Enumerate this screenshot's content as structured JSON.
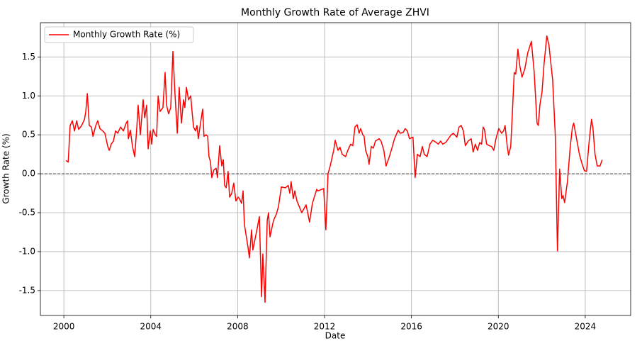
{
  "chart_data": {
    "type": "line",
    "title": "Monthly Growth Rate of Average ZHVI",
    "x_label": "Date",
    "y_label": "Growth Rate (%)",
    "xlim": [
      1998.92,
      2026.09
    ],
    "ylim": [
      -1.82,
      1.94
    ],
    "xticks": [
      2000,
      2004,
      2008,
      2012,
      2016,
      2020,
      2024
    ],
    "yticks": [
      -1.5,
      {
        "value": -1.0,
        "label": "-1.0"
      },
      -0.5,
      {
        "value": 0.0,
        "label": "0.0"
      },
      0.5,
      {
        "value": 1.0,
        "label": "1.0"
      },
      1.5
    ],
    "grid": true,
    "legend": "upper left",
    "hlines": [
      0
    ],
    "series": [
      {
        "name": "Monthly Growth Rate (%)",
        "color": "#ff0000",
        "x": [
          2000.1,
          2000.2,
          2000.29,
          2000.39,
          2000.49,
          2000.59,
          2000.68,
          2000.82,
          2000.95,
          2001.01,
          2001.08,
          2001.17,
          2001.27,
          2001.34,
          2001.47,
          2001.56,
          2001.66,
          2001.79,
          2001.89,
          2002.02,
          2002.09,
          2002.18,
          2002.28,
          2002.38,
          2002.48,
          2002.61,
          2002.74,
          2002.87,
          2002.93,
          2002.97,
          2003.06,
          2003.16,
          2003.26,
          2003.36,
          2003.42,
          2003.52,
          2003.65,
          2003.72,
          2003.81,
          2003.88,
          2003.98,
          2004.04,
          2004.11,
          2004.21,
          2004.27,
          2004.34,
          2004.43,
          2004.56,
          2004.66,
          2004.73,
          2004.82,
          2004.92,
          2005.02,
          2005.12,
          2005.22,
          2005.31,
          2005.41,
          2005.51,
          2005.57,
          2005.64,
          2005.74,
          2005.84,
          2005.9,
          2005.97,
          2006.06,
          2006.13,
          2006.19,
          2006.29,
          2006.39,
          2006.45,
          2006.55,
          2006.62,
          2006.68,
          2006.75,
          2006.81,
          2006.91,
          2007.01,
          2007.07,
          2007.17,
          2007.27,
          2007.34,
          2007.4,
          2007.47,
          2007.56,
          2007.63,
          2007.73,
          2007.82,
          2007.92,
          2008.02,
          2008.08,
          2008.18,
          2008.25,
          2008.31,
          2008.48,
          2008.54,
          2008.64,
          2008.7,
          2008.9,
          2009.0,
          2009.1,
          2009.16,
          2009.26,
          2009.36,
          2009.42,
          2009.49,
          2009.65,
          2009.78,
          2009.88,
          2010.01,
          2010.2,
          2010.33,
          2010.4,
          2010.46,
          2010.56,
          2010.63,
          2010.73,
          2010.95,
          2011.15,
          2011.31,
          2011.44,
          2011.64,
          2011.7,
          2011.96,
          2012.06,
          2012.16,
          2012.26,
          2012.42,
          2012.49,
          2012.62,
          2012.71,
          2012.81,
          2012.97,
          2013.07,
          2013.2,
          2013.3,
          2013.4,
          2013.5,
          2013.59,
          2013.66,
          2013.76,
          2013.82,
          2013.89,
          2013.99,
          2014.05,
          2014.15,
          2014.25,
          2014.34,
          2014.51,
          2014.6,
          2014.73,
          2014.83,
          2014.96,
          2015.09,
          2015.22,
          2015.39,
          2015.48,
          2015.62,
          2015.71,
          2015.81,
          2015.91,
          2016.07,
          2016.17,
          2016.27,
          2016.4,
          2016.5,
          2016.59,
          2016.72,
          2016.85,
          2016.98,
          2017.15,
          2017.24,
          2017.34,
          2017.44,
          2017.57,
          2017.7,
          2017.83,
          2017.93,
          2018.09,
          2018.19,
          2018.29,
          2018.39,
          2018.48,
          2018.61,
          2018.75,
          2018.84,
          2018.94,
          2019.04,
          2019.14,
          2019.23,
          2019.3,
          2019.36,
          2019.46,
          2019.59,
          2019.69,
          2019.79,
          2019.89,
          2020.02,
          2020.15,
          2020.24,
          2020.31,
          2020.41,
          2020.47,
          2020.57,
          2020.64,
          2020.73,
          2020.8,
          2020.9,
          2020.99,
          2021.09,
          2021.22,
          2021.35,
          2021.52,
          2021.65,
          2021.78,
          2021.84,
          2021.91,
          2022.01,
          2022.1,
          2022.23,
          2022.33,
          2022.5,
          2022.62,
          2022.72,
          2022.82,
          2022.92,
          2022.98,
          2023.05,
          2023.18,
          2023.31,
          2023.41,
          2023.47,
          2023.6,
          2023.73,
          2023.86,
          2023.96,
          2024.06,
          2024.19,
          2024.29,
          2024.35,
          2024.45,
          2024.55,
          2024.68,
          2024.78
        ],
        "values": [
          0.17,
          0.15,
          0.62,
          0.68,
          0.55,
          0.68,
          0.57,
          0.62,
          0.7,
          0.8,
          1.03,
          0.62,
          0.6,
          0.48,
          0.62,
          0.68,
          0.58,
          0.55,
          0.52,
          0.35,
          0.3,
          0.38,
          0.42,
          0.55,
          0.52,
          0.6,
          0.55,
          0.65,
          0.68,
          0.45,
          0.56,
          0.35,
          0.22,
          0.6,
          0.88,
          0.5,
          0.95,
          0.72,
          0.88,
          0.32,
          0.55,
          0.38,
          0.57,
          0.5,
          0.48,
          1.0,
          0.8,
          0.85,
          1.3,
          0.88,
          0.77,
          0.85,
          1.57,
          1.0,
          0.52,
          1.11,
          0.65,
          0.95,
          0.85,
          1.11,
          0.95,
          1.0,
          0.8,
          0.6,
          0.55,
          0.62,
          0.45,
          0.65,
          0.83,
          0.48,
          0.5,
          0.48,
          0.22,
          0.15,
          -0.05,
          0.05,
          0.07,
          -0.05,
          0.36,
          0.1,
          0.18,
          -0.15,
          -0.18,
          0.03,
          -0.3,
          -0.25,
          -0.12,
          -0.35,
          -0.3,
          -0.32,
          -0.38,
          -0.22,
          -0.65,
          -0.95,
          -1.08,
          -0.72,
          -0.98,
          -0.7,
          -0.55,
          -1.58,
          -1.03,
          -1.65,
          -0.6,
          -0.5,
          -0.81,
          -0.6,
          -0.52,
          -0.42,
          -0.17,
          -0.18,
          -0.15,
          -0.25,
          -0.1,
          -0.32,
          -0.22,
          -0.35,
          -0.5,
          -0.4,
          -0.62,
          -0.38,
          -0.2,
          -0.22,
          -0.19,
          -0.72,
          0.0,
          0.1,
          0.3,
          0.43,
          0.3,
          0.34,
          0.25,
          0.22,
          0.3,
          0.38,
          0.36,
          0.6,
          0.63,
          0.52,
          0.58,
          0.5,
          0.48,
          0.3,
          0.22,
          0.12,
          0.35,
          0.33,
          0.42,
          0.45,
          0.42,
          0.3,
          0.1,
          0.2,
          0.32,
          0.45,
          0.56,
          0.52,
          0.53,
          0.58,
          0.55,
          0.45,
          0.47,
          -0.05,
          0.25,
          0.22,
          0.35,
          0.25,
          0.22,
          0.38,
          0.43,
          0.4,
          0.38,
          0.42,
          0.38,
          0.4,
          0.45,
          0.5,
          0.52,
          0.47,
          0.6,
          0.62,
          0.55,
          0.36,
          0.42,
          0.45,
          0.28,
          0.38,
          0.3,
          0.4,
          0.38,
          0.6,
          0.57,
          0.38,
          0.36,
          0.35,
          0.3,
          0.45,
          0.58,
          0.52,
          0.55,
          0.62,
          0.35,
          0.24,
          0.35,
          0.75,
          1.3,
          1.28,
          1.6,
          1.38,
          1.24,
          1.35,
          1.55,
          1.7,
          1.3,
          0.65,
          0.62,
          0.88,
          1.05,
          1.4,
          1.77,
          1.65,
          1.2,
          0.5,
          -0.99,
          0.06,
          -0.32,
          -0.28,
          -0.37,
          -0.1,
          0.35,
          0.6,
          0.65,
          0.45,
          0.25,
          0.12,
          0.04,
          0.03,
          0.45,
          0.7,
          0.6,
          0.25,
          0.1,
          0.1,
          0.18
        ]
      }
    ]
  }
}
